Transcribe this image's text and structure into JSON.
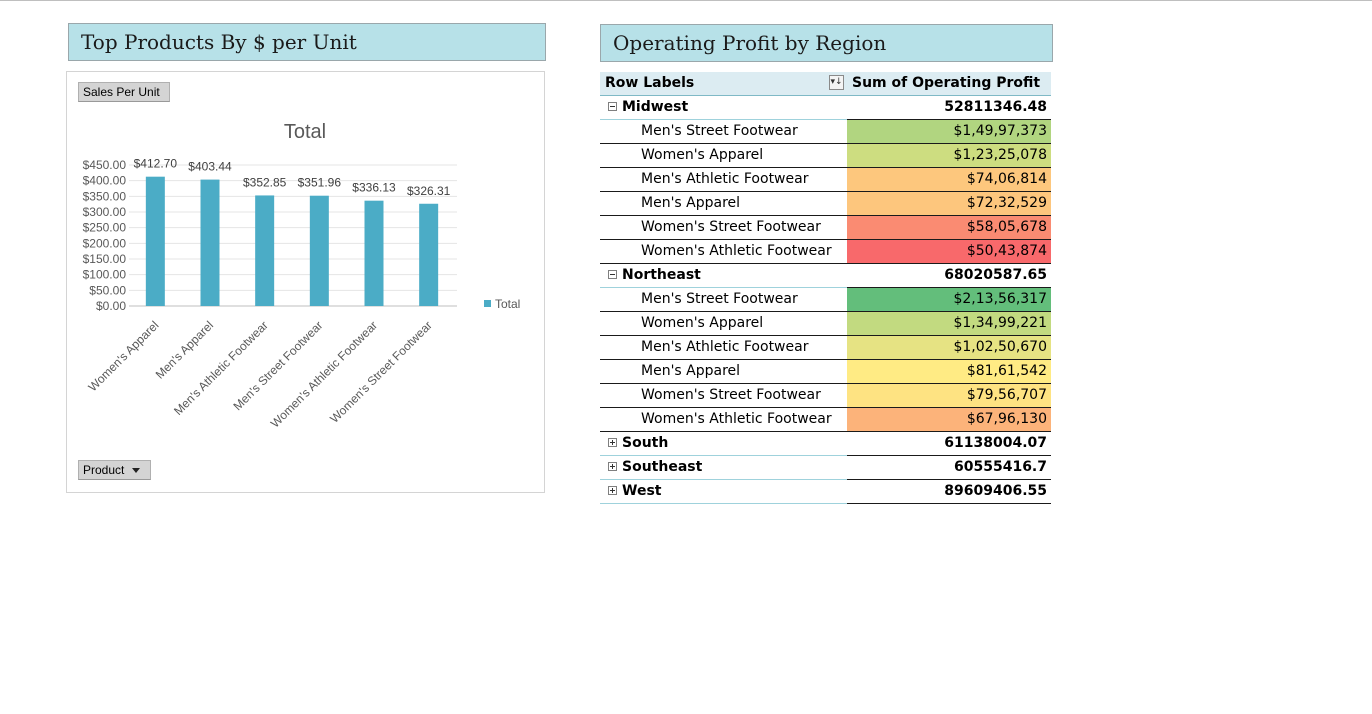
{
  "left_panel": {
    "title": "Top Products By $ per Unit"
  },
  "right_panel": {
    "title": "Operating Profit by Region"
  },
  "chart_controls": {
    "value_field": "Sales Per Unit",
    "axis_field": "Product"
  },
  "chart_data": {
    "type": "bar",
    "title": "Total",
    "categories": [
      "Women's Apparel",
      "Men's Apparel",
      "Men's Athletic Footwear",
      "Men's Street Footwear",
      "Women's Athletic Footwear",
      "Women's Street Footwear"
    ],
    "series": [
      {
        "name": "Total",
        "values": [
          412.7,
          403.44,
          352.85,
          351.96,
          336.13,
          326.31
        ],
        "color": "#4bacc6"
      }
    ],
    "data_labels": [
      "$412.70",
      "$403.44",
      "$352.85",
      "$351.96",
      "$336.13",
      "$326.31"
    ],
    "y_ticks": [
      "$0.00",
      "$50.00",
      "$100.00",
      "$150.00",
      "$200.00",
      "$250.00",
      "$300.00",
      "$350.00",
      "$400.00",
      "$450.00"
    ],
    "ylim": [
      0,
      450
    ],
    "grid": true,
    "legend": "right"
  },
  "pivot": {
    "headers": {
      "row_labels": "Row Labels",
      "value": "Sum of Operating Profit"
    },
    "regions": [
      {
        "name": "Midwest",
        "total": "52811346.48",
        "expanded": true,
        "items": [
          {
            "label": "Men's Street Footwear",
            "value": "$1,49,97,373",
            "color": "#b1d580"
          },
          {
            "label": "Women's Apparel",
            "value": "$1,23,25,078",
            "color": "#cddd80"
          },
          {
            "label": "Men's Athletic Footwear",
            "value": "$74,06,814",
            "color": "#fdc77d"
          },
          {
            "label": "Men's Apparel",
            "value": "$72,32,529",
            "color": "#fdc67d"
          },
          {
            "label": "Women's Street Footwear",
            "value": "$58,05,678",
            "color": "#fa8b72"
          },
          {
            "label": "Women's Athletic Footwear",
            "value": "$50,43,874",
            "color": "#f8696b"
          }
        ]
      },
      {
        "name": "Northeast",
        "total": "68020587.65",
        "expanded": true,
        "items": [
          {
            "label": "Men's Street Footwear",
            "value": "$2,13,56,317",
            "color": "#63be7b"
          },
          {
            "label": "Women's Apparel",
            "value": "$1,34,99,221",
            "color": "#c2da80"
          },
          {
            "label": "Men's Athletic Footwear",
            "value": "$1,02,50,670",
            "color": "#e6e383"
          },
          {
            "label": "Men's Apparel",
            "value": "$81,61,542",
            "color": "#ffeb84"
          },
          {
            "label": "Women's Street Footwear",
            "value": "$79,56,707",
            "color": "#fee382"
          },
          {
            "label": "Women's Athletic Footwear",
            "value": "$67,96,130",
            "color": "#fcb37a"
          }
        ]
      },
      {
        "name": "South",
        "total": "61138004.07",
        "expanded": false,
        "items": []
      },
      {
        "name": "Southeast",
        "total": "60555416.7",
        "expanded": false,
        "items": []
      },
      {
        "name": "West",
        "total": "89609406.55",
        "expanded": false,
        "items": []
      }
    ]
  }
}
